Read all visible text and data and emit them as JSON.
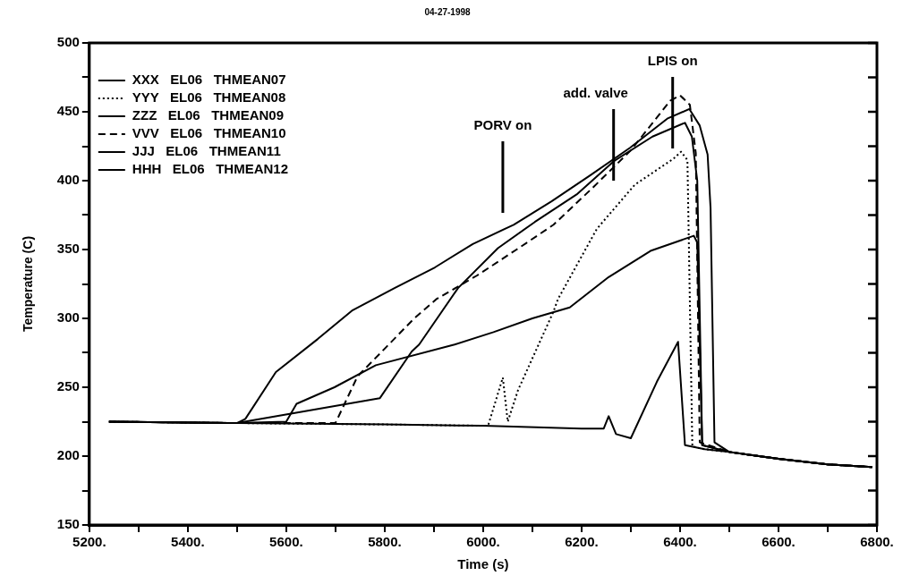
{
  "chart_data": {
    "type": "line",
    "title": "04-27-1998",
    "xlabel": "Time (s)",
    "ylabel": "Temperature (C)",
    "xlim": [
      5200,
      6800
    ],
    "ylim": [
      150,
      500
    ],
    "xticks": [
      {
        "value": 5200,
        "label": "5200."
      },
      {
        "value": 5300,
        "label": null
      },
      {
        "value": 5400,
        "label": "5400."
      },
      {
        "value": 5500,
        "label": null
      },
      {
        "value": 5600,
        "label": "5600."
      },
      {
        "value": 5700,
        "label": null
      },
      {
        "value": 5800,
        "label": "5800."
      },
      {
        "value": 5900,
        "label": null
      },
      {
        "value": 6000,
        "label": "6000."
      },
      {
        "value": 6100,
        "label": null
      },
      {
        "value": 6200,
        "label": "6200."
      },
      {
        "value": 6300,
        "label": null
      },
      {
        "value": 6400,
        "label": "6400."
      },
      {
        "value": 6500,
        "label": null
      },
      {
        "value": 6600,
        "label": "6600."
      },
      {
        "value": 6700,
        "label": null
      },
      {
        "value": 6800,
        "label": "6800."
      }
    ],
    "yticks": [
      150,
      {
        "value": 175,
        "label": null
      },
      200,
      {
        "value": 225,
        "label": null
      },
      250,
      {
        "value": 275,
        "label": null
      },
      300,
      {
        "value": 325,
        "label": null
      },
      350,
      {
        "value": 375,
        "label": null
      },
      400,
      {
        "value": 425,
        "label": null
      },
      450,
      {
        "value": 475,
        "label": null
      },
      500
    ],
    "grid": false,
    "legend": "top left",
    "ref_lines": [
      {
        "axis": "x",
        "value": 6040,
        "label": "PORV on"
      },
      {
        "axis": "x",
        "value": 6265,
        "label": "add. valve"
      },
      {
        "axis": "x",
        "value": 6385,
        "label": "LPIS on"
      }
    ],
    "series": [
      {
        "name": "XXX   EL06   THMEAN07",
        "color": "#000000",
        "line_style": "solid",
        "x": [
          5240,
          5500,
          5800,
          6000,
          6200,
          6245,
          6255,
          6270,
          6300,
          6353,
          6396,
          6410,
          6450,
          6500,
          6600,
          6700,
          6790
        ],
        "values": [
          225,
          224,
          223,
          222,
          220,
          220,
          229,
          216,
          213,
          254,
          283,
          208,
          205,
          203,
          198,
          194,
          192
        ]
      },
      {
        "name": "YYY   EL06   THMEAN08",
        "color": "#000000",
        "line_style": "dotted",
        "x": [
          5240,
          5500,
          5800,
          6010,
          6040,
          6050,
          6071,
          6143,
          6152,
          6231,
          6308,
          6387,
          6402,
          6415,
          6425,
          6450,
          6500,
          6600,
          6700,
          6790
        ],
        "values": [
          225,
          224,
          223,
          222,
          257,
          225,
          248,
          305,
          314,
          365,
          397,
          416,
          421,
          415,
          207,
          205,
          203,
          198,
          194,
          192
        ]
      },
      {
        "name": "ZZZ   EL06   THMEAN09",
        "color": "#000000",
        "line_style": "solid",
        "x": [
          5240,
          5500,
          5790,
          5855,
          5870,
          5949,
          6030,
          6105,
          6190,
          6265,
          6344,
          6410,
          6424,
          6435,
          6445,
          6500,
          6600,
          6700,
          6790
        ],
        "values": [
          225,
          224,
          242,
          276,
          281,
          322,
          351,
          370,
          390,
          414,
          432,
          442,
          432,
          400,
          208,
          203,
          198,
          194,
          192
        ]
      },
      {
        "name": "VVV   EL06   THMEAN10",
        "color": "#000000",
        "line_style": "dashed",
        "x": [
          5240,
          5500,
          5700,
          5745,
          5800,
          5860,
          5905,
          5987,
          6068,
          6143,
          6223,
          6300,
          6380,
          6400,
          6420,
          6432,
          6440,
          6500,
          6600,
          6700,
          6790
        ],
        "values": [
          225,
          224,
          224,
          258,
          278,
          300,
          314,
          331,
          350,
          368,
          395,
          422,
          458,
          462,
          455,
          420,
          210,
          203,
          198,
          194,
          192
        ]
      },
      {
        "name": "JJJ   EL06   THMEAN11",
        "color": "#000000",
        "line_style": "solid",
        "x": [
          5240,
          5500,
          5600,
          5621,
          5698,
          5782,
          5942,
          6021,
          6100,
          6176,
          6255,
          6340,
          6428,
          6435,
          6445,
          6500,
          6600,
          6700,
          6790
        ],
        "values": [
          225,
          224,
          225,
          238,
          250,
          266,
          281,
          290,
          300,
          308,
          330,
          349,
          360,
          355,
          208,
          203,
          198,
          194,
          192
        ]
      },
      {
        "name": "HHH   EL06   THMEAN12",
        "color": "#000000",
        "line_style": "solid",
        "x": [
          5240,
          5500,
          5517,
          5579,
          5664,
          5735,
          5820,
          5902,
          5979,
          6062,
          6139,
          6218,
          6299,
          6374,
          6419,
          6440,
          6456,
          6462,
          6470,
          6500,
          6600,
          6700,
          6790
        ],
        "values": [
          225,
          224,
          227,
          261,
          285,
          306,
          322,
          337,
          354,
          368,
          385,
          404,
          424,
          445,
          452,
          440,
          419,
          380,
          210,
          203,
          198,
          194,
          192
        ]
      }
    ]
  }
}
